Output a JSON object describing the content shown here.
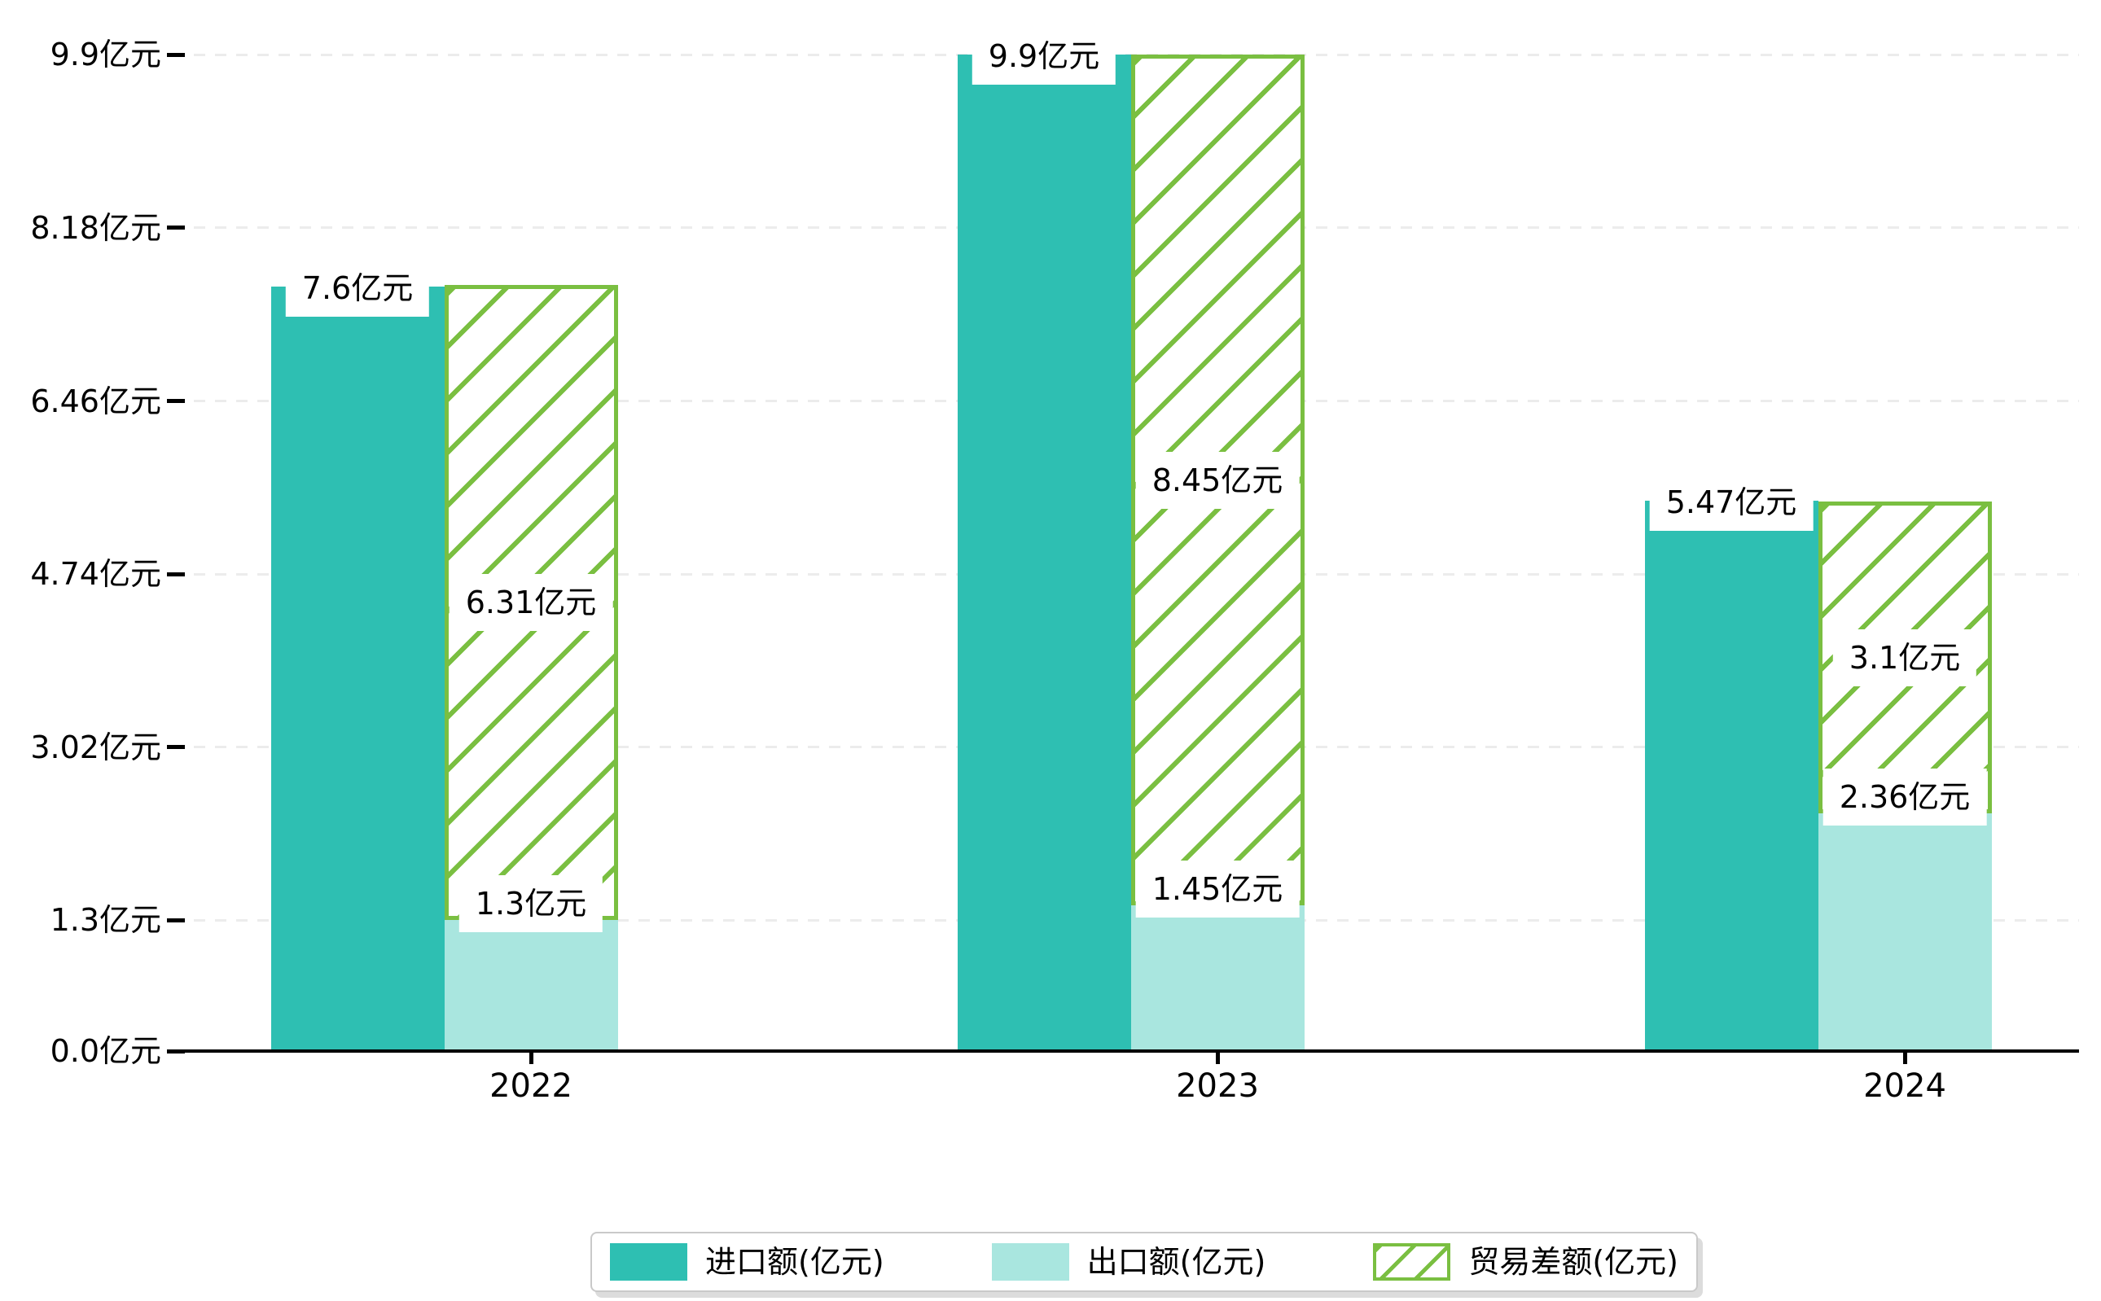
{
  "chart_data": {
    "type": "bar",
    "title": "",
    "categories": [
      "2022",
      "2023",
      "2024"
    ],
    "series": [
      {
        "name": "进口额(亿元)",
        "key": "import",
        "style": "solid",
        "color": "#2ebfb2",
        "values": [
          7.6,
          9.9,
          5.47
        ],
        "labels": [
          "7.6亿元",
          "9.9亿元",
          "5.47亿元"
        ]
      },
      {
        "name": "出口额(亿元)",
        "key": "export",
        "style": "solid",
        "color": "#a9e6df",
        "values": [
          1.3,
          1.45,
          2.36
        ],
        "labels": [
          "1.3亿元",
          "1.45亿元",
          "2.36亿元"
        ]
      },
      {
        "name": "贸易差额(亿元)",
        "key": "trade-balance",
        "style": "hatched",
        "color": "#7abf41",
        "stacked_on": "出口额(亿元)",
        "values": [
          6.31,
          8.45,
          3.1
        ],
        "labels": [
          "6.31亿元",
          "8.45亿元",
          "3.1亿元"
        ]
      }
    ],
    "y_axis": {
      "range": [
        0,
        9.9
      ],
      "ticks": [
        {
          "value": 0,
          "label": "0.0亿元"
        },
        {
          "value": 1.3,
          "label": "1.3亿元"
        },
        {
          "value": 3.02,
          "label": "3.02亿元"
        },
        {
          "value": 4.74,
          "label": "4.74亿元"
        },
        {
          "value": 6.46,
          "label": "6.46亿元"
        },
        {
          "value": 8.18,
          "label": "8.18亿元"
        },
        {
          "value": 9.9,
          "label": "9.9亿元"
        }
      ]
    },
    "x_axis": {
      "labels": [
        "2022",
        "2023",
        "2024"
      ]
    },
    "legend": {
      "position": "bottom",
      "entries": [
        "进口额(亿元)",
        "出口额(亿元)",
        "贸易差额(亿元)"
      ]
    },
    "grid": true
  },
  "colors": {
    "import_bar": "#2ebfb2",
    "export_bar": "#a9e6df",
    "trade_balance_hatch": "#7abf41",
    "gridline": "#ececec",
    "axis": "#000000",
    "label_box_bg": "#ffffff",
    "legend_border": "#c9c9c9"
  }
}
